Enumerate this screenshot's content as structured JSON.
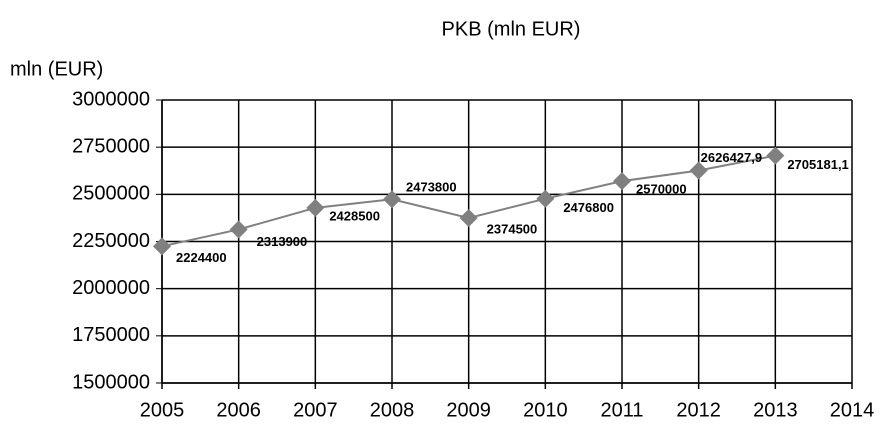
{
  "chart_data": {
    "type": "line",
    "title": "PKB (mln EUR)",
    "y_label": "mln (EUR)",
    "categories": [
      "2005",
      "2006",
      "2007",
      "2008",
      "2009",
      "2010",
      "2011",
      "2012",
      "2013",
      "2014"
    ],
    "series": [
      {
        "name": "PKB",
        "color": "#808080",
        "values": [
          2224400,
          2313900,
          2428500,
          2473800,
          2374500,
          2476800,
          2570000,
          2626427.9,
          2705181.1,
          null
        ],
        "value_labels": [
          "2224400",
          "2313900",
          "2428500",
          "2473800",
          "2374500",
          "2476800",
          "2570000",
          "2626427,9",
          "2705181,1",
          null
        ]
      }
    ],
    "ylim": [
      1500000,
      3000000
    ],
    "yticks": [
      1500000,
      1750000,
      2000000,
      2250000,
      2500000,
      2750000,
      3000000
    ],
    "grid": true
  }
}
